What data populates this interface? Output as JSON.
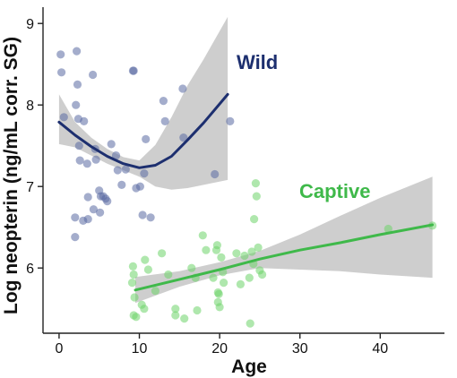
{
  "chart_data": {
    "type": "scatter",
    "xlabel": "Age",
    "ylabel": "Log neopterin (ng/mL corr. SG)",
    "xlim": [
      -2,
      48
    ],
    "ylim": [
      5.2,
      9.2
    ],
    "x_ticks": [
      0,
      10,
      20,
      30,
      40
    ],
    "y_ticks": [
      6,
      7,
      8,
      9
    ],
    "colors": {
      "wild_points": "#5a6aa3",
      "wild_line": "#1d2f6f",
      "captive_points": "#6dd36a",
      "captive_line": "#3fb94a",
      "ribbon": "#bdbdbd",
      "axis": "#222222"
    },
    "series": [
      {
        "name": "Wild",
        "points": [
          [
            0.2,
            8.62
          ],
          [
            0.3,
            8.4
          ],
          [
            0.6,
            7.85
          ],
          [
            2.2,
            8.66
          ],
          [
            2.3,
            8.25
          ],
          [
            2.1,
            8.0
          ],
          [
            2.4,
            7.83
          ],
          [
            2.5,
            7.5
          ],
          [
            2.6,
            7.32
          ],
          [
            2.0,
            6.62
          ],
          [
            3.1,
            7.8
          ],
          [
            3.5,
            7.28
          ],
          [
            3.6,
            6.87
          ],
          [
            3.6,
            6.6
          ],
          [
            4.2,
            8.37
          ],
          [
            4.6,
            7.33
          ],
          [
            4.5,
            7.46
          ],
          [
            4.3,
            6.72
          ],
          [
            5.0,
            6.95
          ],
          [
            5.1,
            6.68
          ],
          [
            5.2,
            6.88
          ],
          [
            5.5,
            6.88
          ],
          [
            5.8,
            6.85
          ],
          [
            6.0,
            6.82
          ],
          [
            6.5,
            7.52
          ],
          [
            7.1,
            7.38
          ],
          [
            7.3,
            7.2
          ],
          [
            7.8,
            7.02
          ],
          [
            8.3,
            7.21
          ],
          [
            9.2,
            8.42
          ],
          [
            9.3,
            8.42
          ],
          [
            9.6,
            6.98
          ],
          [
            10.1,
            7.0
          ],
          [
            10.4,
            6.65
          ],
          [
            10.6,
            7.16
          ],
          [
            10.8,
            7.58
          ],
          [
            11.4,
            6.62
          ],
          [
            13.0,
            8.05
          ],
          [
            13.2,
            7.8
          ],
          [
            15.4,
            8.2
          ],
          [
            15.5,
            7.6
          ],
          [
            19.4,
            7.15
          ],
          [
            21.3,
            7.8
          ],
          [
            2.0,
            6.38
          ],
          [
            3.0,
            6.58
          ]
        ],
        "fit": {
          "x": [
            0,
            2,
            4,
            6,
            8,
            10,
            12,
            14,
            16,
            18,
            21
          ],
          "y": [
            7.79,
            7.63,
            7.49,
            7.37,
            7.28,
            7.23,
            7.26,
            7.37,
            7.57,
            7.78,
            8.13
          ],
          "lower": [
            7.52,
            7.48,
            7.38,
            7.28,
            7.2,
            7.12,
            7.0,
            6.96,
            6.98,
            7.02,
            7.08
          ],
          "upper": [
            8.13,
            7.79,
            7.6,
            7.46,
            7.36,
            7.32,
            7.51,
            7.85,
            8.24,
            8.56,
            9.08
          ]
        }
      },
      {
        "name": "Captive",
        "points": [
          [
            9.2,
            6.02
          ],
          [
            9.3,
            5.92
          ],
          [
            9.1,
            5.82
          ],
          [
            9.4,
            5.64
          ],
          [
            9.3,
            5.42
          ],
          [
            9.6,
            5.4
          ],
          [
            10.3,
            5.55
          ],
          [
            10.6,
            5.5
          ],
          [
            10.7,
            6.1
          ],
          [
            11.1,
            5.98
          ],
          [
            12.0,
            5.72
          ],
          [
            13.6,
            5.92
          ],
          [
            14.5,
            5.5
          ],
          [
            14.5,
            5.42
          ],
          [
            15.6,
            5.38
          ],
          [
            16.5,
            6.0
          ],
          [
            17.0,
            5.88
          ],
          [
            17.2,
            5.48
          ],
          [
            17.9,
            6.4
          ],
          [
            18.3,
            6.22
          ],
          [
            19.2,
            5.88
          ],
          [
            19.6,
            6.22
          ],
          [
            19.7,
            6.28
          ],
          [
            19.8,
            5.7
          ],
          [
            19.8,
            5.58
          ],
          [
            19.9,
            5.68
          ],
          [
            20.0,
            5.52
          ],
          [
            20.2,
            6.13
          ],
          [
            20.4,
            5.95
          ],
          [
            20.5,
            5.82
          ],
          [
            22.1,
            6.18
          ],
          [
            22.6,
            5.8
          ],
          [
            23.1,
            6.15
          ],
          [
            23.7,
            5.88
          ],
          [
            23.8,
            5.32
          ],
          [
            24.0,
            6.2
          ],
          [
            24.2,
            6.05
          ],
          [
            24.3,
            6.6
          ],
          [
            24.5,
            7.04
          ],
          [
            24.6,
            6.88
          ],
          [
            24.8,
            6.25
          ],
          [
            25.0,
            5.97
          ],
          [
            25.3,
            5.92
          ],
          [
            12.8,
            6.18
          ],
          [
            41.0,
            6.48
          ],
          [
            46.5,
            6.52
          ]
        ],
        "fit": {
          "x": [
            9.5,
            15,
            20,
            25,
            30,
            35,
            40,
            46.5
          ],
          "y": [
            5.73,
            5.86,
            5.98,
            6.11,
            6.22,
            6.31,
            6.41,
            6.53
          ],
          "lower": [
            5.57,
            5.77,
            5.91,
            6.0,
            5.98,
            5.96,
            5.92,
            5.88
          ],
          "upper": [
            5.89,
            5.96,
            6.07,
            6.21,
            6.41,
            6.64,
            6.86,
            7.12
          ]
        }
      }
    ]
  }
}
